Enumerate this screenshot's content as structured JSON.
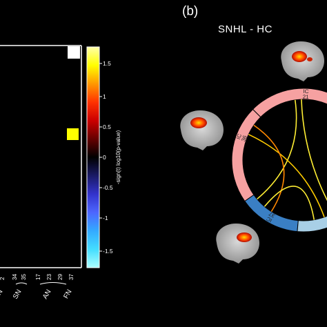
{
  "figure": {
    "panel_b_label": "(b)",
    "panel_b_title": "SNHL - HC"
  },
  "matrix_panel": {
    "x_ticks": [
      "2",
      "34",
      "35",
      "17",
      "23",
      "29",
      "37"
    ],
    "network_labels": [
      "N",
      "SN",
      "AN",
      "FN"
    ],
    "colorbar": {
      "label": "-sign(t) log10(p-value)",
      "ticks": [
        "1.5",
        "1",
        "0.5",
        "0",
        "-0.5",
        "-1",
        "-1.5"
      ],
      "colors": [
        "#ffffaa",
        "#ffff00",
        "#ff9900",
        "#ff3300",
        "#cc0000",
        "#660000",
        "#000000",
        "#1a1a66",
        "#3333cc",
        "#4d66ff",
        "#33aaff",
        "#44ddff",
        "#aaffff"
      ]
    },
    "cells": [
      {
        "name": "white-cell",
        "color": "#ffffff"
      },
      {
        "name": "yellow-cell",
        "color": "#ffff00"
      }
    ]
  },
  "chord_panel": {
    "ring_segments": [
      {
        "name": "IC 21",
        "label": "IC\n21",
        "color": "#f6a1a1"
      },
      {
        "name": "IC 36",
        "label": "IC\n36",
        "color": "#f6a1a1"
      },
      {
        "name": "IC 37",
        "label": "IC\n37",
        "color": "#3a7fc4"
      },
      {
        "name": "light-blue",
        "label": "",
        "color": "#a8cfe6"
      }
    ],
    "connection_colors": [
      "#ffee33",
      "#ffcc00",
      "#ff8800"
    ]
  }
}
